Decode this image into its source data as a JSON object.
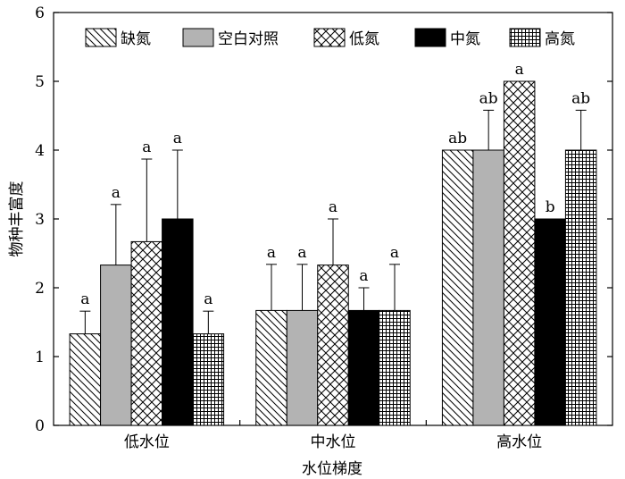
{
  "chart_data": {
    "type": "bar",
    "title": "",
    "xlabel": "水位梯度",
    "ylabel": "物种丰富度",
    "ylim": [
      0,
      6
    ],
    "yticks": [
      0,
      1,
      2,
      3,
      4,
      5,
      6
    ],
    "grid": false,
    "legend_position": "top",
    "categories": [
      "低水位",
      "中水位",
      "高水位"
    ],
    "series": [
      {
        "name": "缺氮",
        "pattern": "diagonal-hatch",
        "values": [
          1.33,
          1.67,
          4.0
        ],
        "errors": [
          0.33,
          0.67,
          null
        ],
        "labels": [
          "a",
          "a",
          "ab"
        ]
      },
      {
        "name": "空白对照",
        "pattern": "solid",
        "color": "#b3b3b3",
        "values": [
          2.33,
          1.67,
          4.0
        ],
        "errors": [
          0.88,
          0.67,
          0.58
        ],
        "labels": [
          "a",
          "a",
          "ab"
        ]
      },
      {
        "name": "低氮",
        "pattern": "cross-hatch",
        "values": [
          2.67,
          2.33,
          5.0
        ],
        "errors": [
          1.2,
          0.67,
          null
        ],
        "labels": [
          "a",
          "a",
          "a"
        ]
      },
      {
        "name": "中氮",
        "pattern": "solid",
        "color": "#000000",
        "values": [
          3.0,
          1.67,
          3.0
        ],
        "errors": [
          1.0,
          0.33,
          null
        ],
        "labels": [
          "a",
          "a",
          "b"
        ]
      },
      {
        "name": "高氮",
        "pattern": "grid",
        "values": [
          1.33,
          1.67,
          4.0
        ],
        "errors": [
          0.33,
          0.67,
          0.58
        ],
        "labels": [
          "a",
          "a",
          "ab"
        ]
      }
    ]
  }
}
